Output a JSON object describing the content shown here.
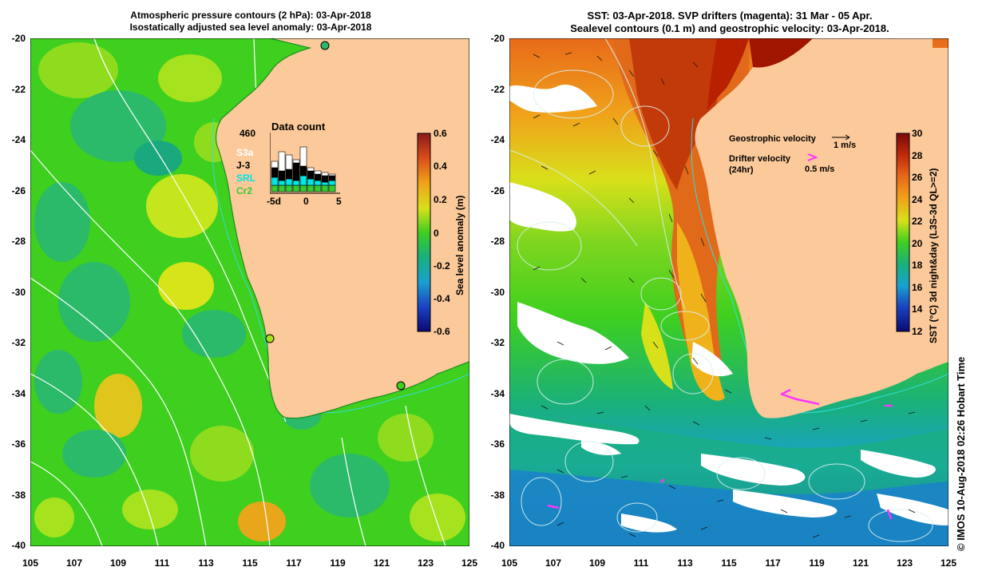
{
  "left_panel": {
    "title_line1": "Atmospheric pressure contours (2 hPa): 03-Apr-2018",
    "title_line2": "Isostatically adjusted sea level anomaly: 03-Apr-2018",
    "colorbar_label": "Sea level anomaly (m)",
    "colorbar_ticks": [
      "0.6",
      "0.4",
      "0.2",
      "0",
      "-0.2",
      "-0.4",
      "-0.6"
    ],
    "inset": {
      "max_count": "460",
      "title": "Data count",
      "missions": [
        "S3a",
        "J-3",
        "SRL",
        "Cr2"
      ],
      "mission_colors": [
        "#ffffff",
        "#000000",
        "#00e5e5",
        "#33cc33"
      ],
      "x_ticks": [
        "-5d",
        "0",
        "5"
      ]
    }
  },
  "right_panel": {
    "title_line1": "SST: 03-Apr-2018. SVP drifters (magenta): 31 Mar - 05 Apr.",
    "title_line2": "Sealevel contours (0.1 m) and geostrophic velocity: 03-Apr-2018.",
    "colorbar_label": "SST (°C) 3d night&day (L3S-3d QL>=2)",
    "colorbar_ticks": [
      "30",
      "28",
      "26",
      "24",
      "22",
      "20",
      "18",
      "16",
      "14",
      "12"
    ],
    "legend": {
      "geostrophic_label": "Geostrophic velocity",
      "geostrophic_scale": "1 m/s",
      "drifter_label": "Drifter velocity",
      "drifter_sub": "(24hr)",
      "drifter_scale": "0.5 m/s"
    }
  },
  "axes": {
    "lat_ticks": [
      "-20",
      "-22",
      "-24",
      "-26",
      "-28",
      "-30",
      "-32",
      "-34",
      "-36",
      "-38",
      "-40"
    ],
    "lon_ticks": [
      "105",
      "107",
      "109",
      "111",
      "113",
      "115",
      "117",
      "119",
      "121",
      "123",
      "125"
    ]
  },
  "copyright": "© IMOS 10-Aug-2018 02:26 Hobart Time",
  "colors": {
    "land": "#fbc99a",
    "sla_green": "#3ecf1f",
    "sst_red": "#b82000",
    "drifter": "#ff33ff"
  }
}
